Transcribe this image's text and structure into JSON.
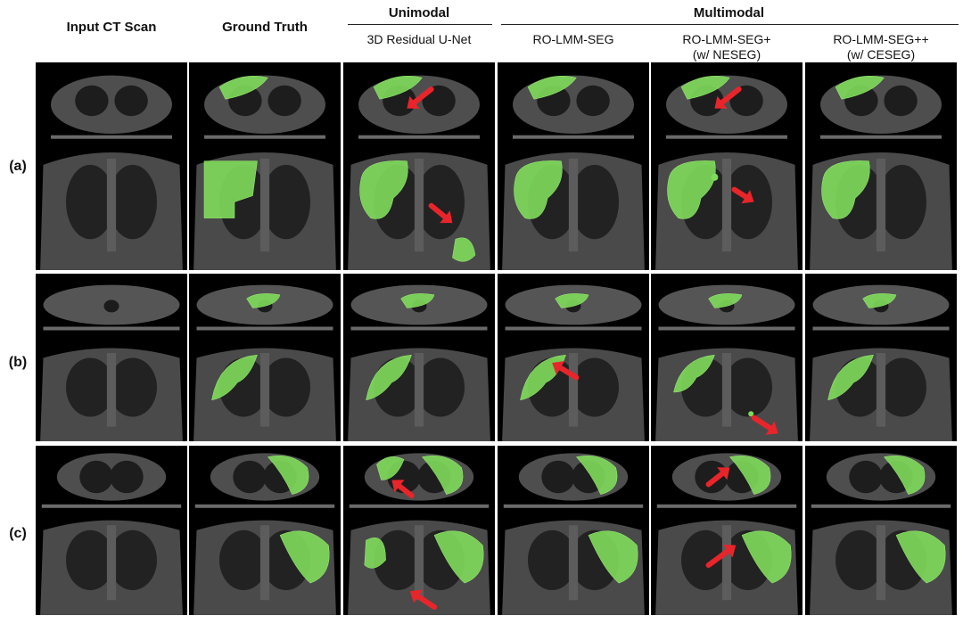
{
  "headers": {
    "input": "Input CT Scan",
    "ground_truth": "Ground Truth",
    "unimodal": "Unimodal",
    "multimodal": "Multimodal",
    "col3": "3D Residual U-Net",
    "col4": "RO-LMM-SEG",
    "col5_line1": "RO-LMM-SEG+",
    "col5_line2": "(w/ NESEG)",
    "col6_line1": "RO-LMM-SEG++",
    "col6_line2": "(w/ CESEG)"
  },
  "rows": [
    {
      "label": "(a)"
    },
    {
      "label": "(b)"
    },
    {
      "label": "(c)"
    }
  ],
  "colors": {
    "segmentation": "#7edc5a",
    "arrow": "#e8252a",
    "background": "#000000",
    "tissue": "#5a5a5a"
  }
}
